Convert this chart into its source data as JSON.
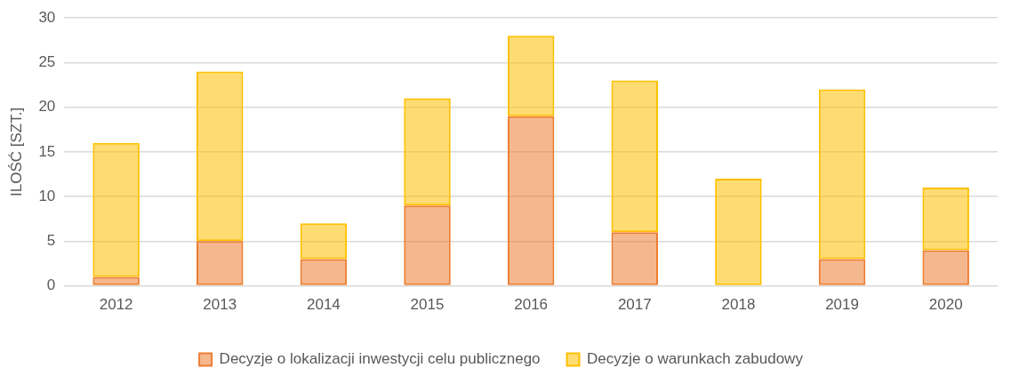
{
  "chart_data": {
    "type": "bar",
    "stacked": true,
    "ylabel": "ILOŚĆ [SZT.]",
    "categories": [
      "2012",
      "2013",
      "2014",
      "2015",
      "2016",
      "2017",
      "2018",
      "2019",
      "2020"
    ],
    "series": [
      {
        "name": "Decyzje o lokalizacji inwestycji celu publicznego",
        "color": "#ed7d31",
        "values": [
          1,
          5,
          3,
          9,
          19,
          6,
          0,
          3,
          4
        ]
      },
      {
        "name": "Decyzje o warunkach zabudowy",
        "color": "#ffc000",
        "values": [
          15,
          19,
          4,
          12,
          9,
          17,
          12,
          19,
          7
        ]
      }
    ],
    "ylim": [
      0,
      30
    ],
    "yticks": [
      0,
      5,
      10,
      15,
      20,
      25,
      30
    ],
    "grid": "y",
    "legend": "bottom"
  }
}
